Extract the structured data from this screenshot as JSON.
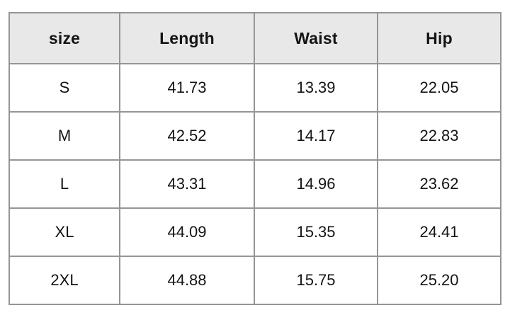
{
  "colors": {
    "page_bg": "#ffffff",
    "header_bg": "#e8e8e8",
    "border": "#959595",
    "text": "#141414"
  },
  "chart_data": {
    "type": "table",
    "columns": [
      "size",
      "Length",
      "Waist",
      "Hip"
    ],
    "rows": [
      [
        "S",
        "41.73",
        "13.39",
        "22.05"
      ],
      [
        "M",
        "42.52",
        "14.17",
        "22.83"
      ],
      [
        "L",
        "43.31",
        "14.96",
        "23.62"
      ],
      [
        "XL",
        "44.09",
        "15.35",
        "24.41"
      ],
      [
        "2XL",
        "44.88",
        "15.75",
        "25.20"
      ]
    ]
  }
}
